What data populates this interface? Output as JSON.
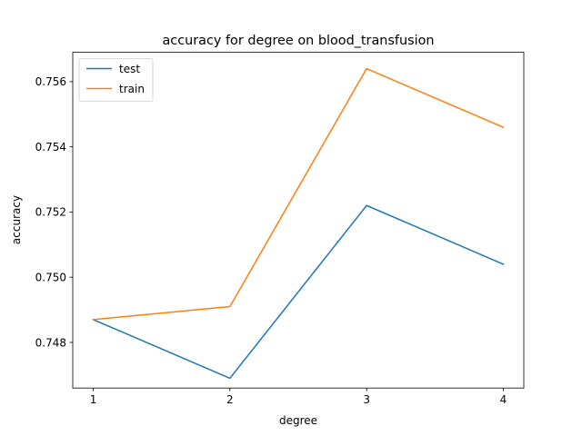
{
  "chart_data": {
    "type": "line",
    "title": "accuracy for degree on  blood_transfusion",
    "xlabel": "degree",
    "ylabel": "accuracy",
    "x": [
      1,
      2,
      3,
      4
    ],
    "xticks": [
      "1",
      "2",
      "3",
      "4"
    ],
    "yticks": [
      "0.748",
      "0.750",
      "0.752",
      "0.754",
      "0.756"
    ],
    "ytick_values": [
      0.748,
      0.75,
      0.752,
      0.754,
      0.756
    ],
    "xlim": [
      0.85,
      4.15
    ],
    "ylim": [
      0.7466,
      0.7569
    ],
    "grid": false,
    "legend_position": "upper-left",
    "series": [
      {
        "name": "test",
        "color": "#1f77b4",
        "values": [
          0.7487,
          0.7469,
          0.7522,
          0.7504
        ]
      },
      {
        "name": "train",
        "color": "#ff7f0e",
        "values": [
          0.7487,
          0.7491,
          0.7564,
          0.7546
        ]
      }
    ]
  }
}
